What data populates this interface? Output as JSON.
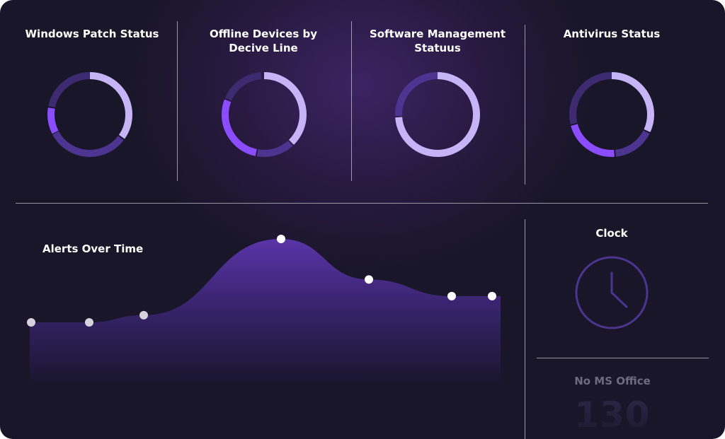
{
  "tiles": [
    {
      "title_line1": "Windows Patch Status",
      "title_line2": ""
    },
    {
      "title_line1": "Offline Devices by",
      "title_line2": "Decive Line"
    },
    {
      "title_line1": "Software Management",
      "title_line2": "Statuus"
    },
    {
      "title_line1": "Antivirus Status",
      "title_line2": ""
    }
  ],
  "alerts": {
    "title": "Alerts Over Time",
    "chart_data": {
      "type": "area",
      "x": [
        1,
        2,
        3,
        4,
        5,
        6,
        7
      ],
      "values": [
        3.0,
        3.0,
        3.3,
        6.5,
        4.8,
        4.1,
        4.1
      ],
      "ylim": [
        0,
        7
      ],
      "title": "Alerts Over Time",
      "xlabel": "",
      "ylabel": "",
      "grid": false
    }
  },
  "clock": {
    "title": "Clock"
  },
  "office": {
    "title": "No MS Office",
    "count": "130"
  },
  "colors": {
    "light": "#c7b4f7",
    "mid": "#4d3490",
    "bright": "#8b4dff",
    "dark": "#3d2a70"
  }
}
